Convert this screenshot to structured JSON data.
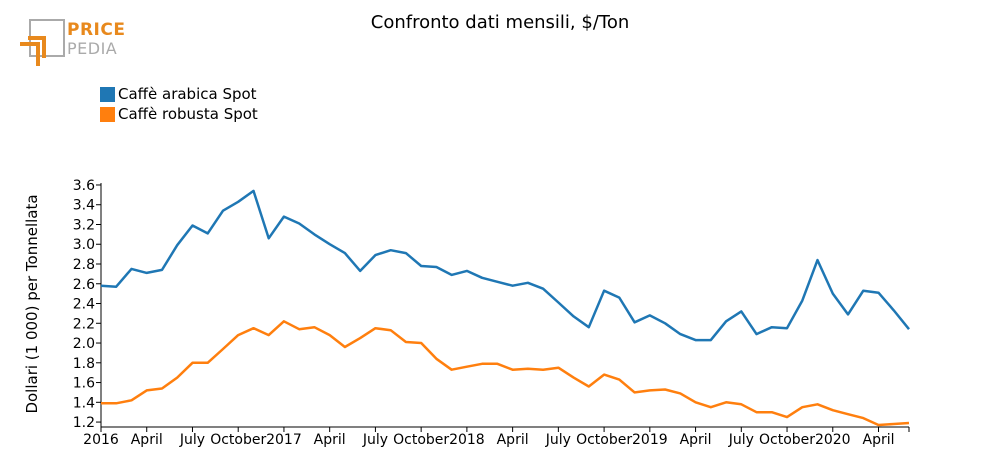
{
  "logo": {
    "line1": "PRICE",
    "line2": "PEDIA"
  },
  "colors": {
    "arabica": "#1f77b4",
    "robusta": "#ff7f0e",
    "logo_orange": "#e8891d",
    "logo_gray": "#aaaaaa"
  },
  "chart_data": {
    "type": "line",
    "title": "Confronto dati mensili, $/Ton",
    "xlabel": "",
    "ylabel": "Dollari (1 000) per Tonnellata",
    "ylim": [
      1.15,
      3.62
    ],
    "yticks": [
      1.2,
      1.4,
      1.6,
      1.8,
      2.0,
      2.2,
      2.4,
      2.6,
      2.8,
      3.0,
      3.2,
      3.4,
      3.6
    ],
    "ytick_labels": [
      "1.2",
      "1.4",
      "1.6",
      "1.8",
      "2.0",
      "2.2",
      "2.4",
      "2.6",
      "2.8",
      "3.0",
      "3.2",
      "3.4",
      "3.6"
    ],
    "xticks": [
      {
        "index": 0,
        "label": "2016"
      },
      {
        "index": 3,
        "label": "April"
      },
      {
        "index": 6,
        "label": "July"
      },
      {
        "index": 9,
        "label": "October"
      },
      {
        "index": 12,
        "label": "2017"
      },
      {
        "index": 15,
        "label": "April"
      },
      {
        "index": 18,
        "label": "July"
      },
      {
        "index": 21,
        "label": "October"
      },
      {
        "index": 24,
        "label": "2018"
      },
      {
        "index": 27,
        "label": "April"
      },
      {
        "index": 30,
        "label": "July"
      },
      {
        "index": 33,
        "label": "October"
      },
      {
        "index": 36,
        "label": "2019"
      },
      {
        "index": 39,
        "label": "April"
      },
      {
        "index": 42,
        "label": "July"
      },
      {
        "index": 45,
        "label": "October"
      },
      {
        "index": 48,
        "label": "2020"
      },
      {
        "index": 51,
        "label": "April"
      }
    ],
    "n_months": 54,
    "legend": "top-left",
    "series": [
      {
        "name": "Caffè arabica Spot",
        "color": "#1f77b4",
        "values": [
          2.58,
          2.57,
          2.75,
          2.71,
          2.74,
          2.99,
          3.19,
          3.11,
          3.34,
          3.43,
          3.54,
          3.06,
          3.28,
          3.21,
          3.1,
          3.0,
          2.91,
          2.73,
          2.89,
          2.94,
          2.91,
          2.78,
          2.77,
          2.69,
          2.73,
          2.66,
          2.62,
          2.58,
          2.61,
          2.55,
          2.41,
          2.27,
          2.16,
          2.53,
          2.46,
          2.21,
          2.28,
          2.2,
          2.09,
          2.03,
          2.03,
          2.22,
          2.32,
          2.09,
          2.16,
          2.15,
          2.43,
          2.84,
          2.5,
          2.29,
          2.53,
          2.51,
          2.33,
          2.14
        ]
      },
      {
        "name": "Caffè robusta Spot",
        "color": "#ff7f0e",
        "values": [
          1.39,
          1.39,
          1.42,
          1.52,
          1.54,
          1.65,
          1.8,
          1.8,
          1.94,
          2.08,
          2.15,
          2.08,
          2.22,
          2.14,
          2.16,
          2.08,
          1.96,
          2.05,
          2.15,
          2.13,
          2.01,
          2.0,
          1.84,
          1.73,
          1.76,
          1.79,
          1.79,
          1.73,
          1.74,
          1.73,
          1.75,
          1.65,
          1.56,
          1.68,
          1.63,
          1.5,
          1.52,
          1.53,
          1.49,
          1.4,
          1.35,
          1.4,
          1.38,
          1.3,
          1.3,
          1.25,
          1.35,
          1.38,
          1.32,
          1.28,
          1.24,
          1.17,
          1.18,
          1.19
        ]
      }
    ]
  }
}
